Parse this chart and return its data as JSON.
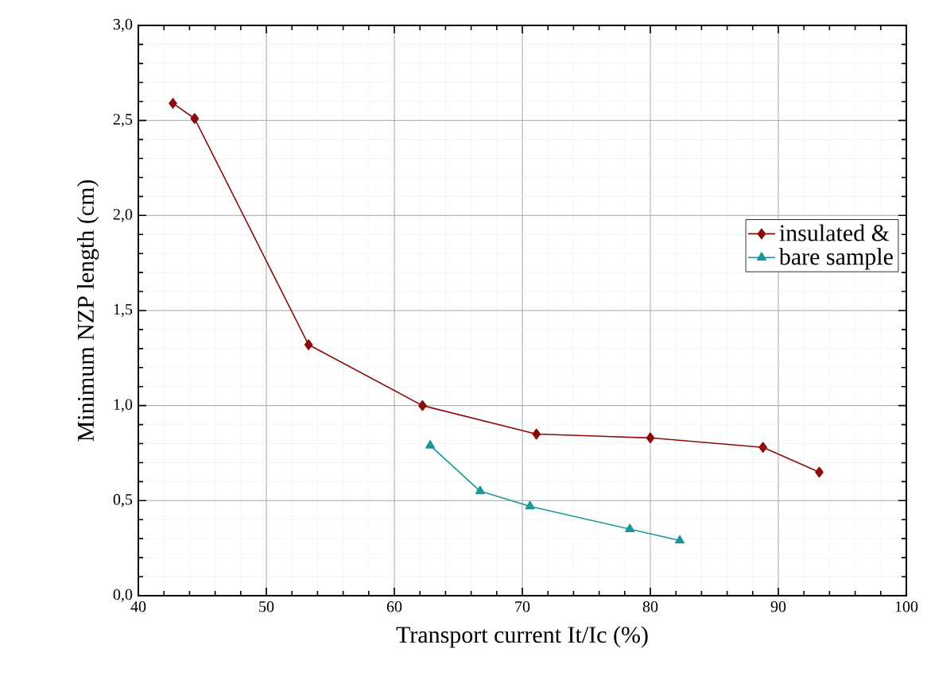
{
  "chart_data": {
    "type": "line",
    "xlabel": "Transport current It/Ic (%)",
    "ylabel": "Minimum NZP length (cm)",
    "xlim": [
      40,
      100
    ],
    "ylim": [
      0,
      3.0
    ],
    "xticks": [
      40,
      50,
      60,
      70,
      80,
      90,
      100
    ],
    "yticks": [
      {
        "value": 0,
        "label": "0,0"
      },
      {
        "value": 0.5,
        "label": "0,5"
      },
      {
        "value": 1.0,
        "label": "1,0"
      },
      {
        "value": 1.5,
        "label": "1,5"
      },
      {
        "value": 2.0,
        "label": "2,0"
      },
      {
        "value": 2.5,
        "label": "2,5"
      },
      {
        "value": 3.0,
        "label": "3,0"
      }
    ],
    "grid": true,
    "legend": "right",
    "line_style": "solid",
    "series": [
      {
        "name": "insulated &",
        "color": "#8b0a0a",
        "marker": "diamond",
        "x": [
          42.7,
          44.4,
          53.3,
          62.2,
          71.1,
          80.0,
          88.8,
          93.2
        ],
        "values": [
          2.59,
          2.51,
          1.32,
          1.0,
          0.85,
          0.83,
          0.78,
          0.65
        ]
      },
      {
        "name": "bare sample",
        "color": "#1a9696",
        "marker": "triangle",
        "x": [
          62.8,
          66.7,
          70.6,
          78.4,
          82.3
        ],
        "values": [
          0.79,
          0.55,
          0.47,
          0.35,
          0.29
        ]
      }
    ]
  }
}
